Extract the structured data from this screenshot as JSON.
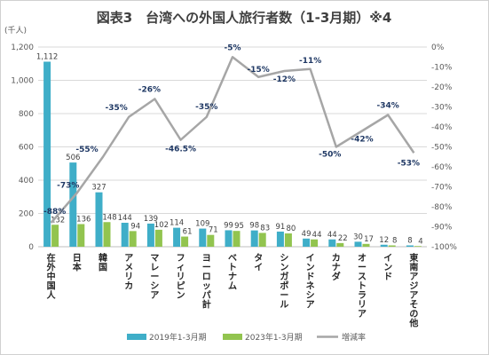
{
  "chart_data": {
    "type": "bar",
    "title": "図表3　台湾への外国人旅行者数（1-3月期）※4",
    "ylabel": "(千人)",
    "ylim": [
      0,
      1200
    ],
    "y_ticks": [
      "0",
      "200",
      "400",
      "600",
      "800",
      "1,000",
      "1,200"
    ],
    "y2lim": [
      -100,
      0
    ],
    "y2_ticks": [
      "0%",
      "-10%",
      "-20%",
      "-30%",
      "-40%",
      "-50%",
      "-60%",
      "-70%",
      "-80%",
      "-90%",
      "-100%"
    ],
    "categories": [
      "在外中国人",
      "日本",
      "韓国",
      "アメリカ",
      "マレーシア",
      "フィリピン",
      "ヨーロッパ計",
      "ベトナム",
      "タイ",
      "シンガポール",
      "インドネシア",
      "カナダ",
      "オーストラリア",
      "インド",
      "東南アジアその他"
    ],
    "series": [
      {
        "name": "2019年1-3月期",
        "color": "#3faec8",
        "values": [
          1112,
          506,
          327,
          144,
          139,
          114,
          109,
          99,
          98,
          91,
          49,
          44,
          30,
          12,
          8
        ]
      },
      {
        "name": "2023年1-3月期",
        "color": "#92c44f",
        "values": [
          132,
          136,
          148,
          94,
          102,
          61,
          71,
          95,
          83,
          80,
          44,
          22,
          17,
          8,
          4
        ]
      }
    ],
    "line_series": {
      "name": "増減率",
      "color": "#a6a6a6",
      "axis": "right",
      "values": [
        -88,
        -73,
        -55,
        -35,
        -26,
        -46.5,
        -35,
        -5,
        -15,
        -12,
        -11,
        -50,
        -42,
        -34,
        -53
      ],
      "labels": [
        "-88%",
        "-73%",
        "-55%",
        "-35%",
        "-26%",
        "-46.5%",
        "-35%",
        "-5%",
        "-15%",
        "-12%",
        "-11%",
        "-50%",
        "-42%",
        "-34%",
        "-53%"
      ]
    },
    "bar_labels_2019": [
      "1,112",
      "506",
      "327",
      "144",
      "139",
      "114",
      "109",
      "99",
      "98",
      "91",
      "49",
      "44",
      "30",
      "12",
      "8"
    ],
    "bar_labels_2023": [
      "132",
      "136",
      "148",
      "94",
      "102",
      "61",
      "71",
      "95",
      "83",
      "80",
      "44",
      "22",
      "17",
      "8",
      "4"
    ],
    "legend_position": "bottom",
    "grid": true
  }
}
